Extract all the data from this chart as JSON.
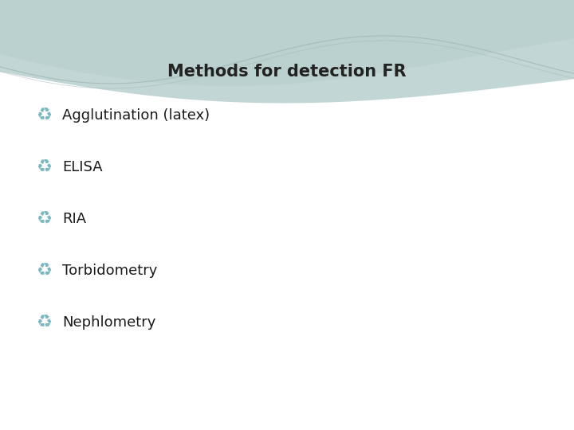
{
  "title": "Methods for detection FR",
  "title_fontsize": 15,
  "title_color": "#222222",
  "bg_color": "#ffffff",
  "bullet_items": [
    "Agglutination (latex)",
    "ELISA",
    "RIA",
    "Torbidometry",
    "Nephlometry"
  ],
  "item_fontsize": 13,
  "text_color": "#1a1a1a",
  "bullet_color": "#7ab8c0",
  "wave_color1": "#9bbcbc",
  "wave_color2": "#b5ceca",
  "wave_line_color": "#a0b8b5"
}
